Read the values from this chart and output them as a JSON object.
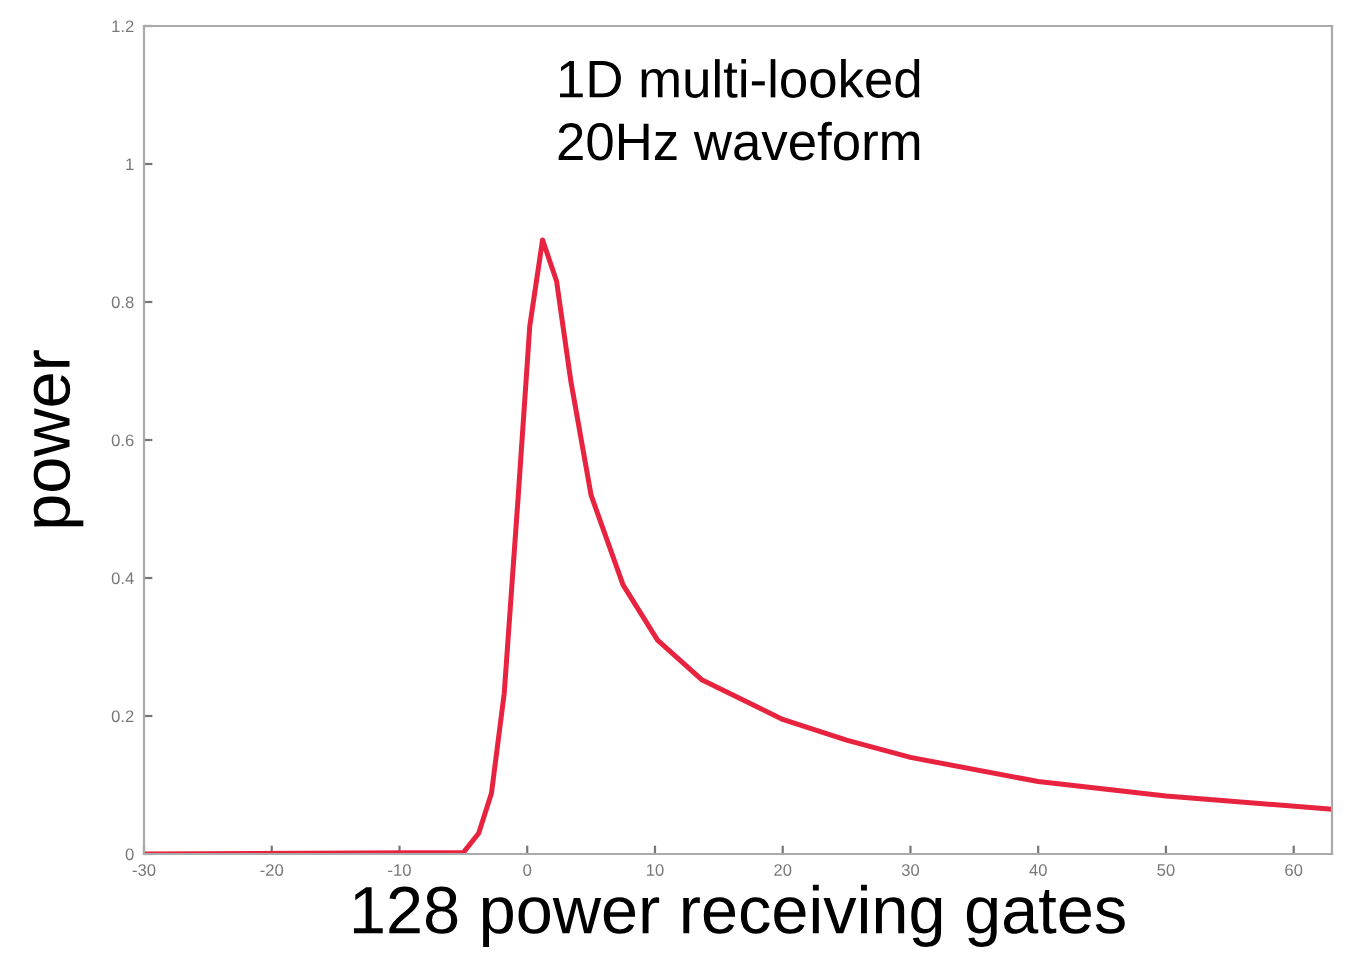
{
  "chart_data": {
    "type": "line",
    "xlabel": "128 power receiving gates",
    "ylabel": "power",
    "annotations": [
      "1D multi-looked\n20Hz waveform"
    ],
    "xlim": [
      -30,
      63
    ],
    "xticks": [
      -30,
      -20,
      -10,
      0,
      10,
      20,
      30,
      40,
      50,
      60
    ],
    "ylim": [
      0,
      1.2
    ],
    "yticks": [
      0,
      0.2,
      0.4,
      0.6,
      0.8,
      1,
      1.2
    ],
    "grid": false,
    "legend": false,
    "series": [
      {
        "color": "#e8233f",
        "x": [
          -30,
          -5,
          -3.8,
          -2.8,
          -1.8,
          -0.7,
          0.2,
          1.2,
          2.3,
          3.4,
          5,
          7.5,
          10.2,
          13.7,
          17.9,
          20,
          25,
          30,
          40,
          50,
          63
        ],
        "values": [
          0,
          0.002,
          0.03,
          0.088,
          0.233,
          0.52,
          0.765,
          0.89,
          0.83,
          0.687,
          0.52,
          0.39,
          0.31,
          0.252,
          0.214,
          0.195,
          0.165,
          0.14,
          0.105,
          0.084,
          0.065
        ]
      }
    ]
  }
}
